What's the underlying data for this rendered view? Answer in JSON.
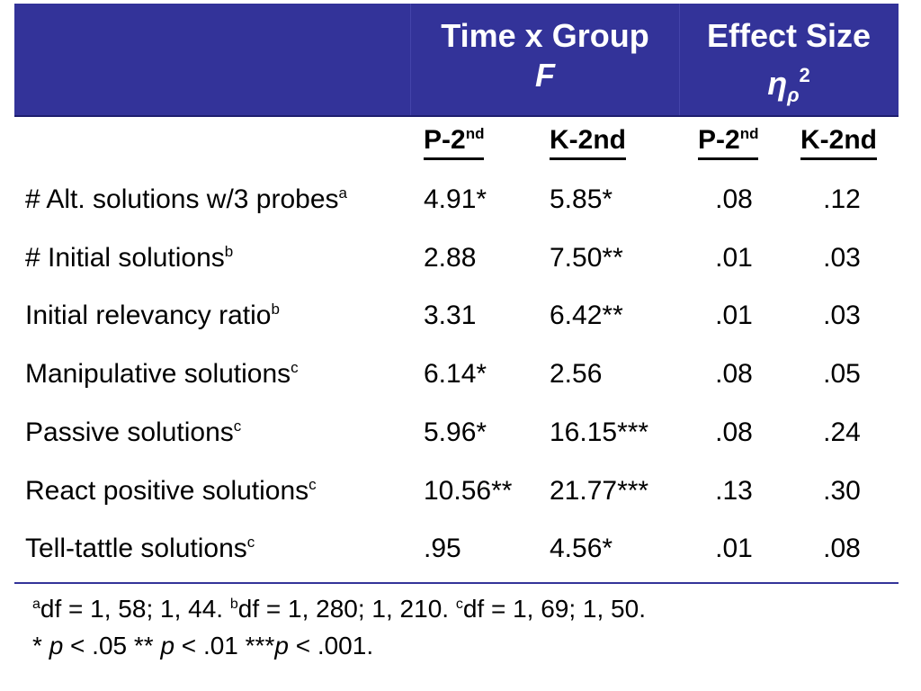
{
  "colors": {
    "header_bg": "#333399",
    "header_text": "#ffffff",
    "divider": "#333399"
  },
  "header": {
    "f_title": "Time x Group",
    "f_stat": "F",
    "es_title": "Effect Size",
    "es_symbol": "η",
    "es_sub": "ρ",
    "es_sup": "2"
  },
  "subheaders": {
    "p_base": "P-2",
    "p_sup": "nd",
    "k": "K-2nd",
    "ep_base": "P-2",
    "ep_sup": "nd",
    "ek": "K-2nd"
  },
  "rows": [
    {
      "label": "# Alt. solutions w/3 probes",
      "sup": "a",
      "f_p": "4.91*",
      "f_k": "5.85*",
      "es_p": ".08",
      "es_k": ".12"
    },
    {
      "label": "# Initial solutions",
      "sup": "b",
      "f_p": "2.88",
      "f_k": "7.50**",
      "es_p": ".01",
      "es_k": ".03"
    },
    {
      "label": "Initial relevancy ratio",
      "sup": "b",
      "f_p": "3.31",
      "f_k": "6.42**",
      "es_p": ".01",
      "es_k": ".03"
    },
    {
      "label": "Manipulative solutions",
      "sup": "c",
      "f_p": "6.14*",
      "f_k": "2.56",
      "es_p": ".08",
      "es_k": ".05"
    },
    {
      "label": "Passive solutions",
      "sup": "c",
      "f_p": "5.96*",
      "f_k": "16.15***",
      "es_p": ".08",
      "es_k": ".24"
    },
    {
      "label": "React positive solutions",
      "sup": "c",
      "f_p": "10.56**",
      "f_k": "21.77***",
      "es_p": ".13",
      "es_k": ".30"
    },
    {
      "label": "Tell-tattle solutions",
      "sup": "c",
      "f_p": ".95",
      "f_k": "4.56*",
      "es_p": ".01",
      "es_k": ".08"
    }
  ],
  "notes": {
    "a_sup": "a",
    "a_text": "df = 1, 58; 1, 44.  ",
    "b_sup": "b",
    "b_text": "df = 1, 280; 1, 210. ",
    "c_sup": "c",
    "c_text": "df = 1, 69; 1, 50.",
    "p1_prefix": "* ",
    "p_letter": "p",
    "p1_rest": " < .05 ** ",
    "p2_rest": " < .01 ***",
    "p3_rest": " < .001."
  }
}
